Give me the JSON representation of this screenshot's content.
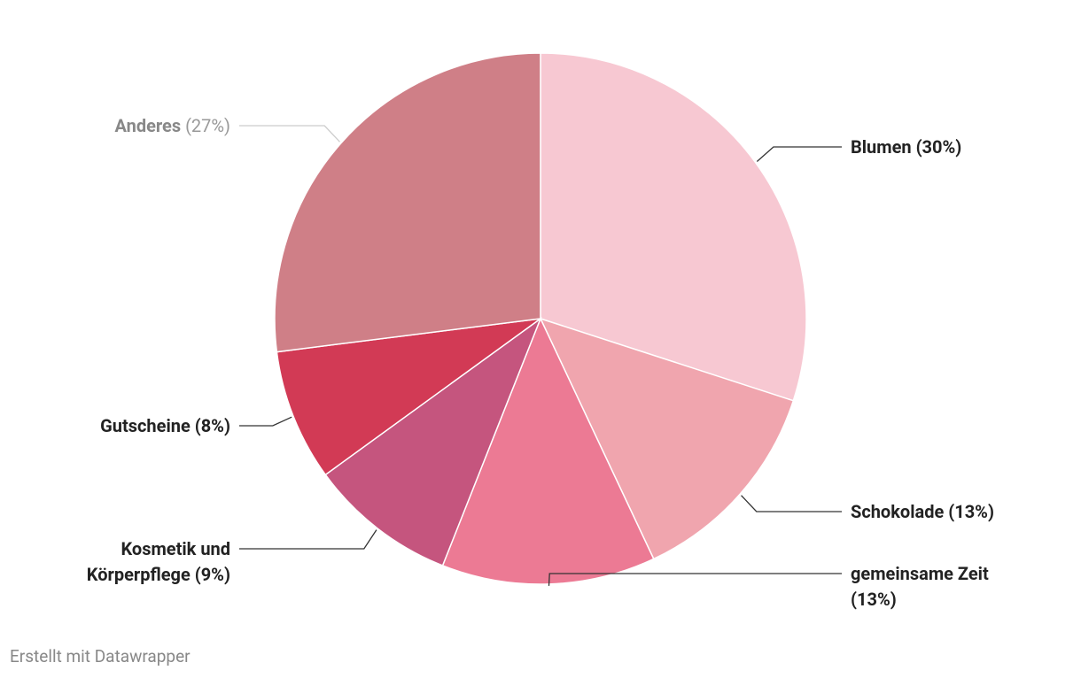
{
  "chart_data": {
    "type": "pie",
    "categories": [
      "Blumen",
      "Schokolade",
      "gemeinsame Zeit",
      "Kosmetik und Körperpflege",
      "Gutscheine",
      "Anderes"
    ],
    "values": [
      30,
      13,
      13,
      9,
      8,
      27
    ],
    "value_labels": [
      "(30%)",
      "(13%)",
      "(13%)",
      "(9%)",
      "(8%)",
      "(27%)"
    ],
    "colors": [
      "#f7c8d2",
      "#f0a5ae",
      "#ec7a94",
      "#c5557e",
      "#d23a55",
      "#cf7f87"
    ],
    "note": "Erstellt mit Datawrapper"
  }
}
